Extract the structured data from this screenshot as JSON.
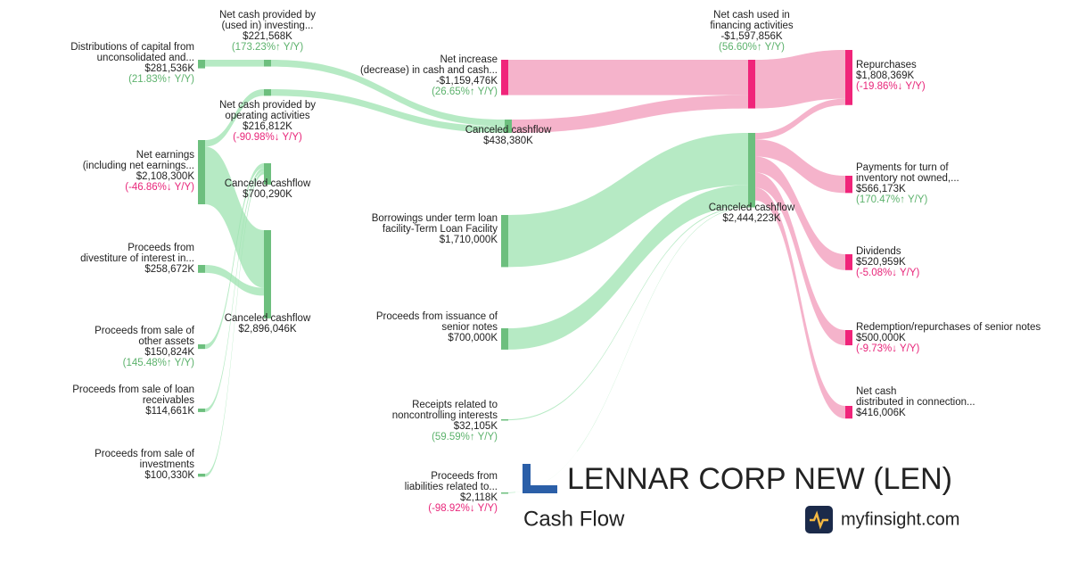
{
  "chart_data": {
    "type": "sankey",
    "nodes": [
      {
        "label": [
          "Distributions of capital from",
          "unconsolidated and..."
        ],
        "value": 281536,
        "value_label": "$281,536K",
        "change_label": "(21.83%↑ Y/Y)",
        "change_color": "#5cb26c",
        "color": "#6dbf7e"
      },
      {
        "label": [
          "Net earnings",
          "(including net earnings..."
        ],
        "value": 2108300,
        "value_label": "$2,108,300K",
        "change_label": "(-46.86%↓ Y/Y)",
        "change_color": "#e8267a",
        "color": "#6dbf7e"
      },
      {
        "label": [
          "Proceeds from",
          "divestiture of interest in..."
        ],
        "value": 258672,
        "value_label": "$258,672K",
        "color": "#6dbf7e"
      },
      {
        "label": [
          "Proceeds from sale of",
          "other assets"
        ],
        "value": 150824,
        "value_label": "$150,824K",
        "change_label": "(145.48%↑ Y/Y)",
        "change_color": "#5cb26c",
        "color": "#6dbf7e"
      },
      {
        "label": [
          "Proceeds from sale of loan",
          "receivables"
        ],
        "value": 114661,
        "value_label": "$114,661K",
        "color": "#6dbf7e"
      },
      {
        "label": [
          "Proceeds from sale of",
          "investments"
        ],
        "value": 100330,
        "value_label": "$100,330K",
        "color": "#6dbf7e"
      },
      {
        "label": [
          "Net cash provided by",
          "(used in) investing..."
        ],
        "value": 221568,
        "value_label": "$221,568K",
        "change_label": "(173.23%↑ Y/Y)",
        "change_color": "#5cb26c",
        "color": "#6dbf7e"
      },
      {
        "label": [
          "Net cash provided by",
          "operating activities"
        ],
        "value": 216812,
        "value_label": "$216,812K",
        "change_label": "(-90.98%↓ Y/Y)",
        "change_color": "#e8267a",
        "color": "#6dbf7e"
      },
      {
        "label": [
          "Canceled cashflow"
        ],
        "value": 700290,
        "value_label": "$700,290K",
        "color": "#6dbf7e"
      },
      {
        "label": [
          "Canceled cashflow"
        ],
        "value": 2896046,
        "value_label": "$2,896,046K",
        "color": "#6dbf7e"
      },
      {
        "label": [
          "Net increase",
          "(decrease) in cash and cash..."
        ],
        "value": -1159476,
        "value_label": "-$1,159,476K",
        "change_label": "(26.65%↑ Y/Y)",
        "change_color": "#5cb26c",
        "color": "#f0247a"
      },
      {
        "label": [
          "Canceled cashflow"
        ],
        "value": 438380,
        "value_label": "$438,380K",
        "color": "#6dbf7e"
      },
      {
        "label": [
          "Borrowings under term loan",
          "facility-Term Loan Facility"
        ],
        "value": 1710000,
        "value_label": "$1,710,000K",
        "color": "#6dbf7e"
      },
      {
        "label": [
          "Proceeds from issuance of",
          "senior notes"
        ],
        "value": 700000,
        "value_label": "$700,000K",
        "color": "#6dbf7e"
      },
      {
        "label": [
          "Receipts related to",
          "noncontrolling interests"
        ],
        "value": 32105,
        "value_label": "$32,105K",
        "change_label": "(59.59%↑ Y/Y)",
        "change_color": "#5cb26c",
        "color": "#6dbf7e"
      },
      {
        "label": [
          "Proceeds from",
          "liabilities related to..."
        ],
        "value": 2118,
        "value_label": "$2,118K",
        "change_label": "(-98.92%↓ Y/Y)",
        "change_color": "#e8267a",
        "color": "#6dbf7e"
      },
      {
        "label": [
          "Net cash used in",
          "financing activities"
        ],
        "value": -1597856,
        "value_label": "-$1,597,856K",
        "change_label": "(56.60%↑ Y/Y)",
        "change_color": "#5cb26c",
        "color": "#f0247a"
      },
      {
        "label": [
          "Canceled cashflow"
        ],
        "value": 2444223,
        "value_label": "$2,444,223K",
        "color": "#6dbf7e"
      },
      {
        "label": [
          "Repurchases"
        ],
        "value": 1808369,
        "value_label": "$1,808,369K",
        "change_label": "(-19.86%↓ Y/Y)",
        "change_color": "#e8267a",
        "color": "#f0247a"
      },
      {
        "label": [
          "Payments for turn of",
          "inventory not owned,..."
        ],
        "value": 566173,
        "value_label": "$566,173K",
        "change_label": "(170.47%↑ Y/Y)",
        "change_color": "#5cb26c",
        "color": "#f0247a"
      },
      {
        "label": [
          "Dividends"
        ],
        "value": 520959,
        "value_label": "$520,959K",
        "change_label": "(-5.08%↓ Y/Y)",
        "change_color": "#e8267a",
        "color": "#f0247a"
      },
      {
        "label": [
          "Redemption/repurchases of senior notes"
        ],
        "value": 500000,
        "value_label": "$500,000K",
        "change_label": "(-9.73%↓ Y/Y)",
        "change_color": "#e8267a",
        "color": "#f0247a"
      },
      {
        "label": [
          "Net cash",
          "distributed in connection..."
        ],
        "value": 416006,
        "value_label": "$416,006K",
        "color": "#f0247a"
      }
    ],
    "links": [
      {
        "source": 0,
        "target": 6,
        "value": 221568,
        "color": "#9de3b0"
      },
      {
        "source": 1,
        "target": 7,
        "value": 216812,
        "color": "#9de3b0"
      },
      {
        "source": 1,
        "target": 9,
        "value": 1891488,
        "color": "#9de3b0"
      },
      {
        "source": 2,
        "target": 9,
        "value": 258672,
        "color": "#9de3b0"
      },
      {
        "source": 3,
        "target": 8,
        "value": 150824,
        "color": "#9de3b0"
      },
      {
        "source": 4,
        "target": 8,
        "value": 114661,
        "color": "#9de3b0"
      },
      {
        "source": 5,
        "target": 8,
        "value": 100330,
        "color": "#9de3b0"
      },
      {
        "source": 6,
        "target": 11,
        "value": 221568,
        "color": "#9de3b0"
      },
      {
        "source": 7,
        "target": 11,
        "value": 216812,
        "color": "#9de3b0"
      },
      {
        "source": 10,
        "target": 16,
        "value": 1159476,
        "color": "#f29aba"
      },
      {
        "source": 11,
        "target": 16,
        "value": 438380,
        "color": "#f29aba"
      },
      {
        "source": 12,
        "target": 17,
        "value": 1710000,
        "color": "#9de3b0"
      },
      {
        "source": 13,
        "target": 17,
        "value": 700000,
        "color": "#9de3b0"
      },
      {
        "source": 14,
        "target": 17,
        "value": 32105,
        "color": "#9de3b0"
      },
      {
        "source": 15,
        "target": 17,
        "value": 2118,
        "color": "#9de3b0"
      },
      {
        "source": 16,
        "target": 18,
        "value": 1597856,
        "color": "#f29aba"
      },
      {
        "source": 17,
        "target": 18,
        "value": 210513,
        "color": "#f29aba"
      },
      {
        "source": 17,
        "target": 19,
        "value": 566173,
        "color": "#f29aba"
      },
      {
        "source": 17,
        "target": 20,
        "value": 520959,
        "color": "#f29aba"
      },
      {
        "source": 17,
        "target": 21,
        "value": 500000,
        "color": "#f29aba"
      },
      {
        "source": 17,
        "target": 22,
        "value": 416006,
        "color": "#f29aba"
      }
    ],
    "company": "LENNAR CORP NEW (LEN)",
    "subtitle": "Cash Flow",
    "brand": "myfinsight.com"
  }
}
